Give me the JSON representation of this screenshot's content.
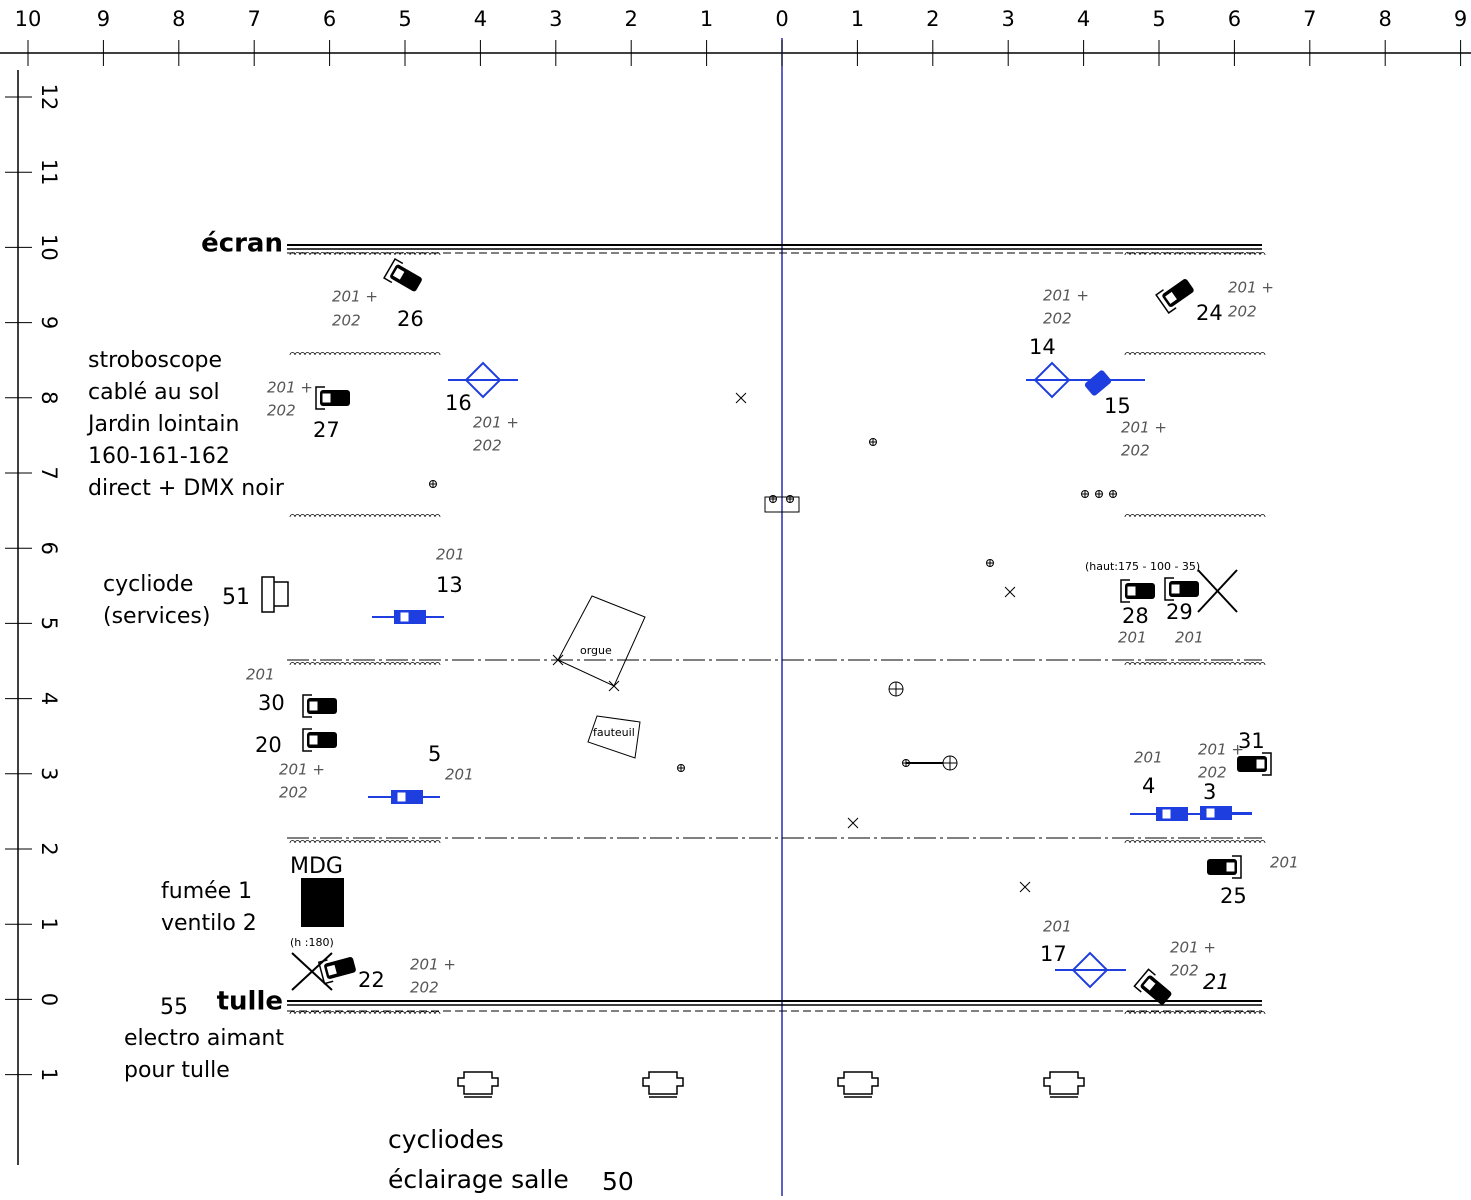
{
  "ruler_top": [
    "10",
    "9",
    "8",
    "7",
    "6",
    "5",
    "4",
    "3",
    "2",
    "1",
    "0",
    "1",
    "2",
    "3",
    "4",
    "5",
    "6",
    "7",
    "8",
    "9"
  ],
  "ruler_left": [
    "12",
    "11",
    "10",
    "9",
    "8",
    "7",
    "6",
    "5",
    "4",
    "3",
    "2",
    "1",
    "0",
    "1"
  ],
  "stage": {
    "screen": "écran",
    "scrim": "tulle"
  },
  "notes": {
    "strobe": [
      "stroboscope",
      "cablé au sol",
      "Jardin lointain",
      "160-161-162",
      "direct + DMX noir"
    ],
    "cyc_services": [
      "cycliode",
      "(services)"
    ],
    "cyc_services_num": "51",
    "smoke": [
      "fumée 1",
      "ventilo 2"
    ],
    "mdg": "MDG",
    "mdg_height": "(h :180)",
    "magnet_num": "55",
    "magnet": [
      "electro aimant",
      "pour tulle"
    ],
    "house": [
      "cycliodes",
      "éclairage salle"
    ],
    "house_num": "50",
    "organ": "orgue",
    "armchair": "fauteuil",
    "height": "(haut:175 - 100 - 35)"
  },
  "fixtures": [
    "26",
    "24",
    "14",
    "15",
    "16",
    "27",
    "13",
    "28",
    "29",
    "30",
    "20",
    "5",
    "31",
    "4",
    "3",
    "25",
    "17",
    "22",
    "21"
  ],
  "gels": [
    "201 +",
    "202",
    "201 +",
    "202",
    "201 +",
    "202",
    "201 +",
    "202",
    "201 +",
    "202",
    "201 +",
    "202",
    "201",
    "201",
    "201 +",
    "202",
    "201",
    "201",
    "201 +",
    "202",
    "201",
    "201",
    "201",
    "201",
    "201 +",
    "202",
    "201 +",
    "202"
  ]
}
